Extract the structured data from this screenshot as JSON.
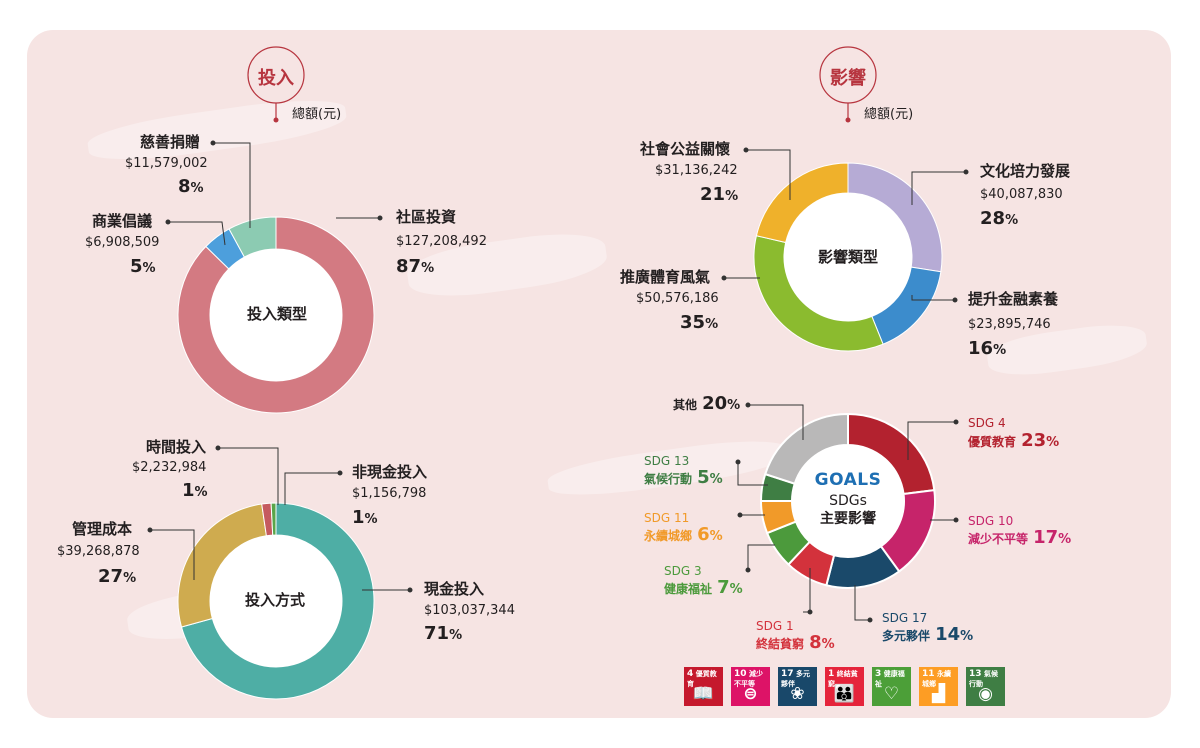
{
  "colors": {
    "invest_community": "#d37a82",
    "invest_business": "#4d9fdc",
    "invest_charity": "#8ccbb2",
    "method_cash": "#4eaea5",
    "method_mgmt": "#cfab4f",
    "method_time": "#c55a5f",
    "method_noncash": "#5aa54a",
    "impact_culture": "#b6abd5",
    "impact_finance": "#3c8ccc",
    "impact_sport": "#8bbb2f",
    "impact_social": "#efb12b",
    "sdg4": "#b3222f",
    "sdg10": "#c6246a",
    "sdg17": "#1a496a",
    "sdg1": "#d3323c",
    "sdg3": "#4c9a3c",
    "sdg11": "#f19a29",
    "sdg13": "#3f7e44",
    "other": "#b9b8b8",
    "accent": "#b7353f"
  },
  "header": {
    "input_badge": "投入",
    "impact_badge": "影響",
    "unit_left": "總額(元)",
    "unit_right": "總額(元)"
  },
  "chart_data": [
    {
      "type": "pie",
      "variant": "donut",
      "center_label": "投入類型",
      "categories": [
        "社區投資",
        "商業倡議",
        "慈善捐贈"
      ],
      "values": [
        127208492,
        6908509,
        11579002
      ],
      "amount_labels": [
        "$127,208,492",
        "$6,908,509",
        "$11,579,002"
      ],
      "percent_labels": [
        "87",
        "5",
        "8"
      ],
      "percent_sign": "%"
    },
    {
      "type": "pie",
      "variant": "donut",
      "center_label": "投入方式",
      "categories": [
        "現金投入",
        "管理成本",
        "時間投入",
        "非現金投入"
      ],
      "values": [
        103037344,
        39268878,
        2232984,
        1156798
      ],
      "amount_labels": [
        "$103,037,344",
        "$39,268,878",
        "$2,232,984",
        "$1,156,798"
      ],
      "percent_labels": [
        "71",
        "27",
        "1",
        "1"
      ],
      "percent_sign": "%"
    },
    {
      "type": "pie",
      "variant": "donut",
      "center_label": "影響類型",
      "categories": [
        "文化培力發展",
        "提升金融素養",
        "推廣體育風氣",
        "社會公益關懷"
      ],
      "values": [
        40087830,
        23895746,
        50576186,
        31136242
      ],
      "amount_labels": [
        "$40,087,830",
        "$23,895,746",
        "$50,576,186",
        "$31,136,242"
      ],
      "percent_labels": [
        "28",
        "16",
        "35",
        "21"
      ],
      "percent_sign": "%"
    },
    {
      "type": "pie",
      "variant": "donut",
      "center_logo": "GOALS",
      "center_label_1": "SDGs",
      "center_label_2": "主要影響",
      "codes": [
        "SDG 4",
        "SDG 10",
        "SDG 17",
        "SDG 1",
        "SDG 3",
        "SDG 11",
        "SDG 13",
        ""
      ],
      "categories": [
        "優質教育",
        "減少不平等",
        "多元夥伴",
        "終結貧窮",
        "健康福祉",
        "永續城鄉",
        "氣候行動",
        "其他"
      ],
      "values": [
        23,
        17,
        14,
        8,
        7,
        6,
        5,
        20
      ],
      "percent_labels": [
        "23",
        "17",
        "14",
        "8",
        "7",
        "6",
        "5",
        "20"
      ],
      "percent_sign": "%"
    }
  ],
  "sdg_tiles": [
    {
      "num": "4",
      "name": "優質教育",
      "color": "#c5192d",
      "glyph": "📖"
    },
    {
      "num": "10",
      "name": "減少不平等",
      "color": "#dd1367",
      "glyph": "⊜"
    },
    {
      "num": "17",
      "name": "多元夥伴",
      "color": "#19486a",
      "glyph": "❀"
    },
    {
      "num": "1",
      "name": "終結貧窮",
      "color": "#e5243b",
      "glyph": "👪"
    },
    {
      "num": "3",
      "name": "健康福祉",
      "color": "#4c9f38",
      "glyph": "♡"
    },
    {
      "num": "11",
      "name": "永續城鄉",
      "color": "#fd9d24",
      "glyph": "▟"
    },
    {
      "num": "13",
      "name": "氣候行動",
      "color": "#3f7e44",
      "glyph": "◉"
    }
  ]
}
